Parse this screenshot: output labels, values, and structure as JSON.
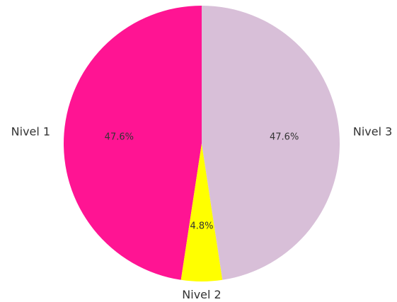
{
  "chart_data": {
    "type": "pie",
    "categories": [
      "Nivel 1",
      "Nivel 2",
      "Nivel 3"
    ],
    "values": [
      47.6,
      4.8,
      47.6
    ],
    "value_labels": [
      "47.6%",
      "4.8%",
      "47.6%"
    ],
    "colors": [
      "#ff1493",
      "#ffff00",
      "#d8bfd8"
    ]
  }
}
